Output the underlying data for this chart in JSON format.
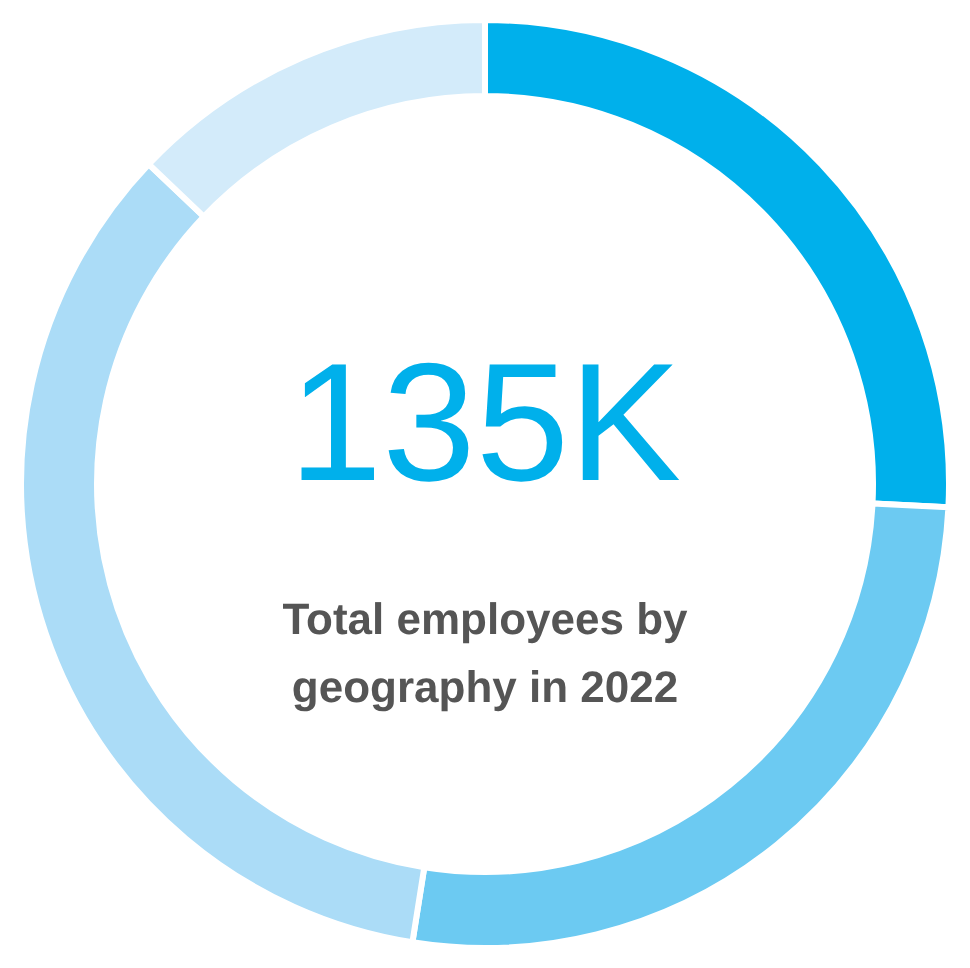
{
  "chart_data": {
    "type": "donut",
    "title": "135K",
    "subtitle": "Total employees by geography in 2022",
    "categories": [
      null,
      null,
      null,
      null
    ],
    "values": [
      25.8,
      26.7,
      34.6,
      12.9
    ],
    "colors": [
      "#00b0eb",
      "#6ccaf2",
      "#abdcf7",
      "#d3ebfa"
    ]
  }
}
